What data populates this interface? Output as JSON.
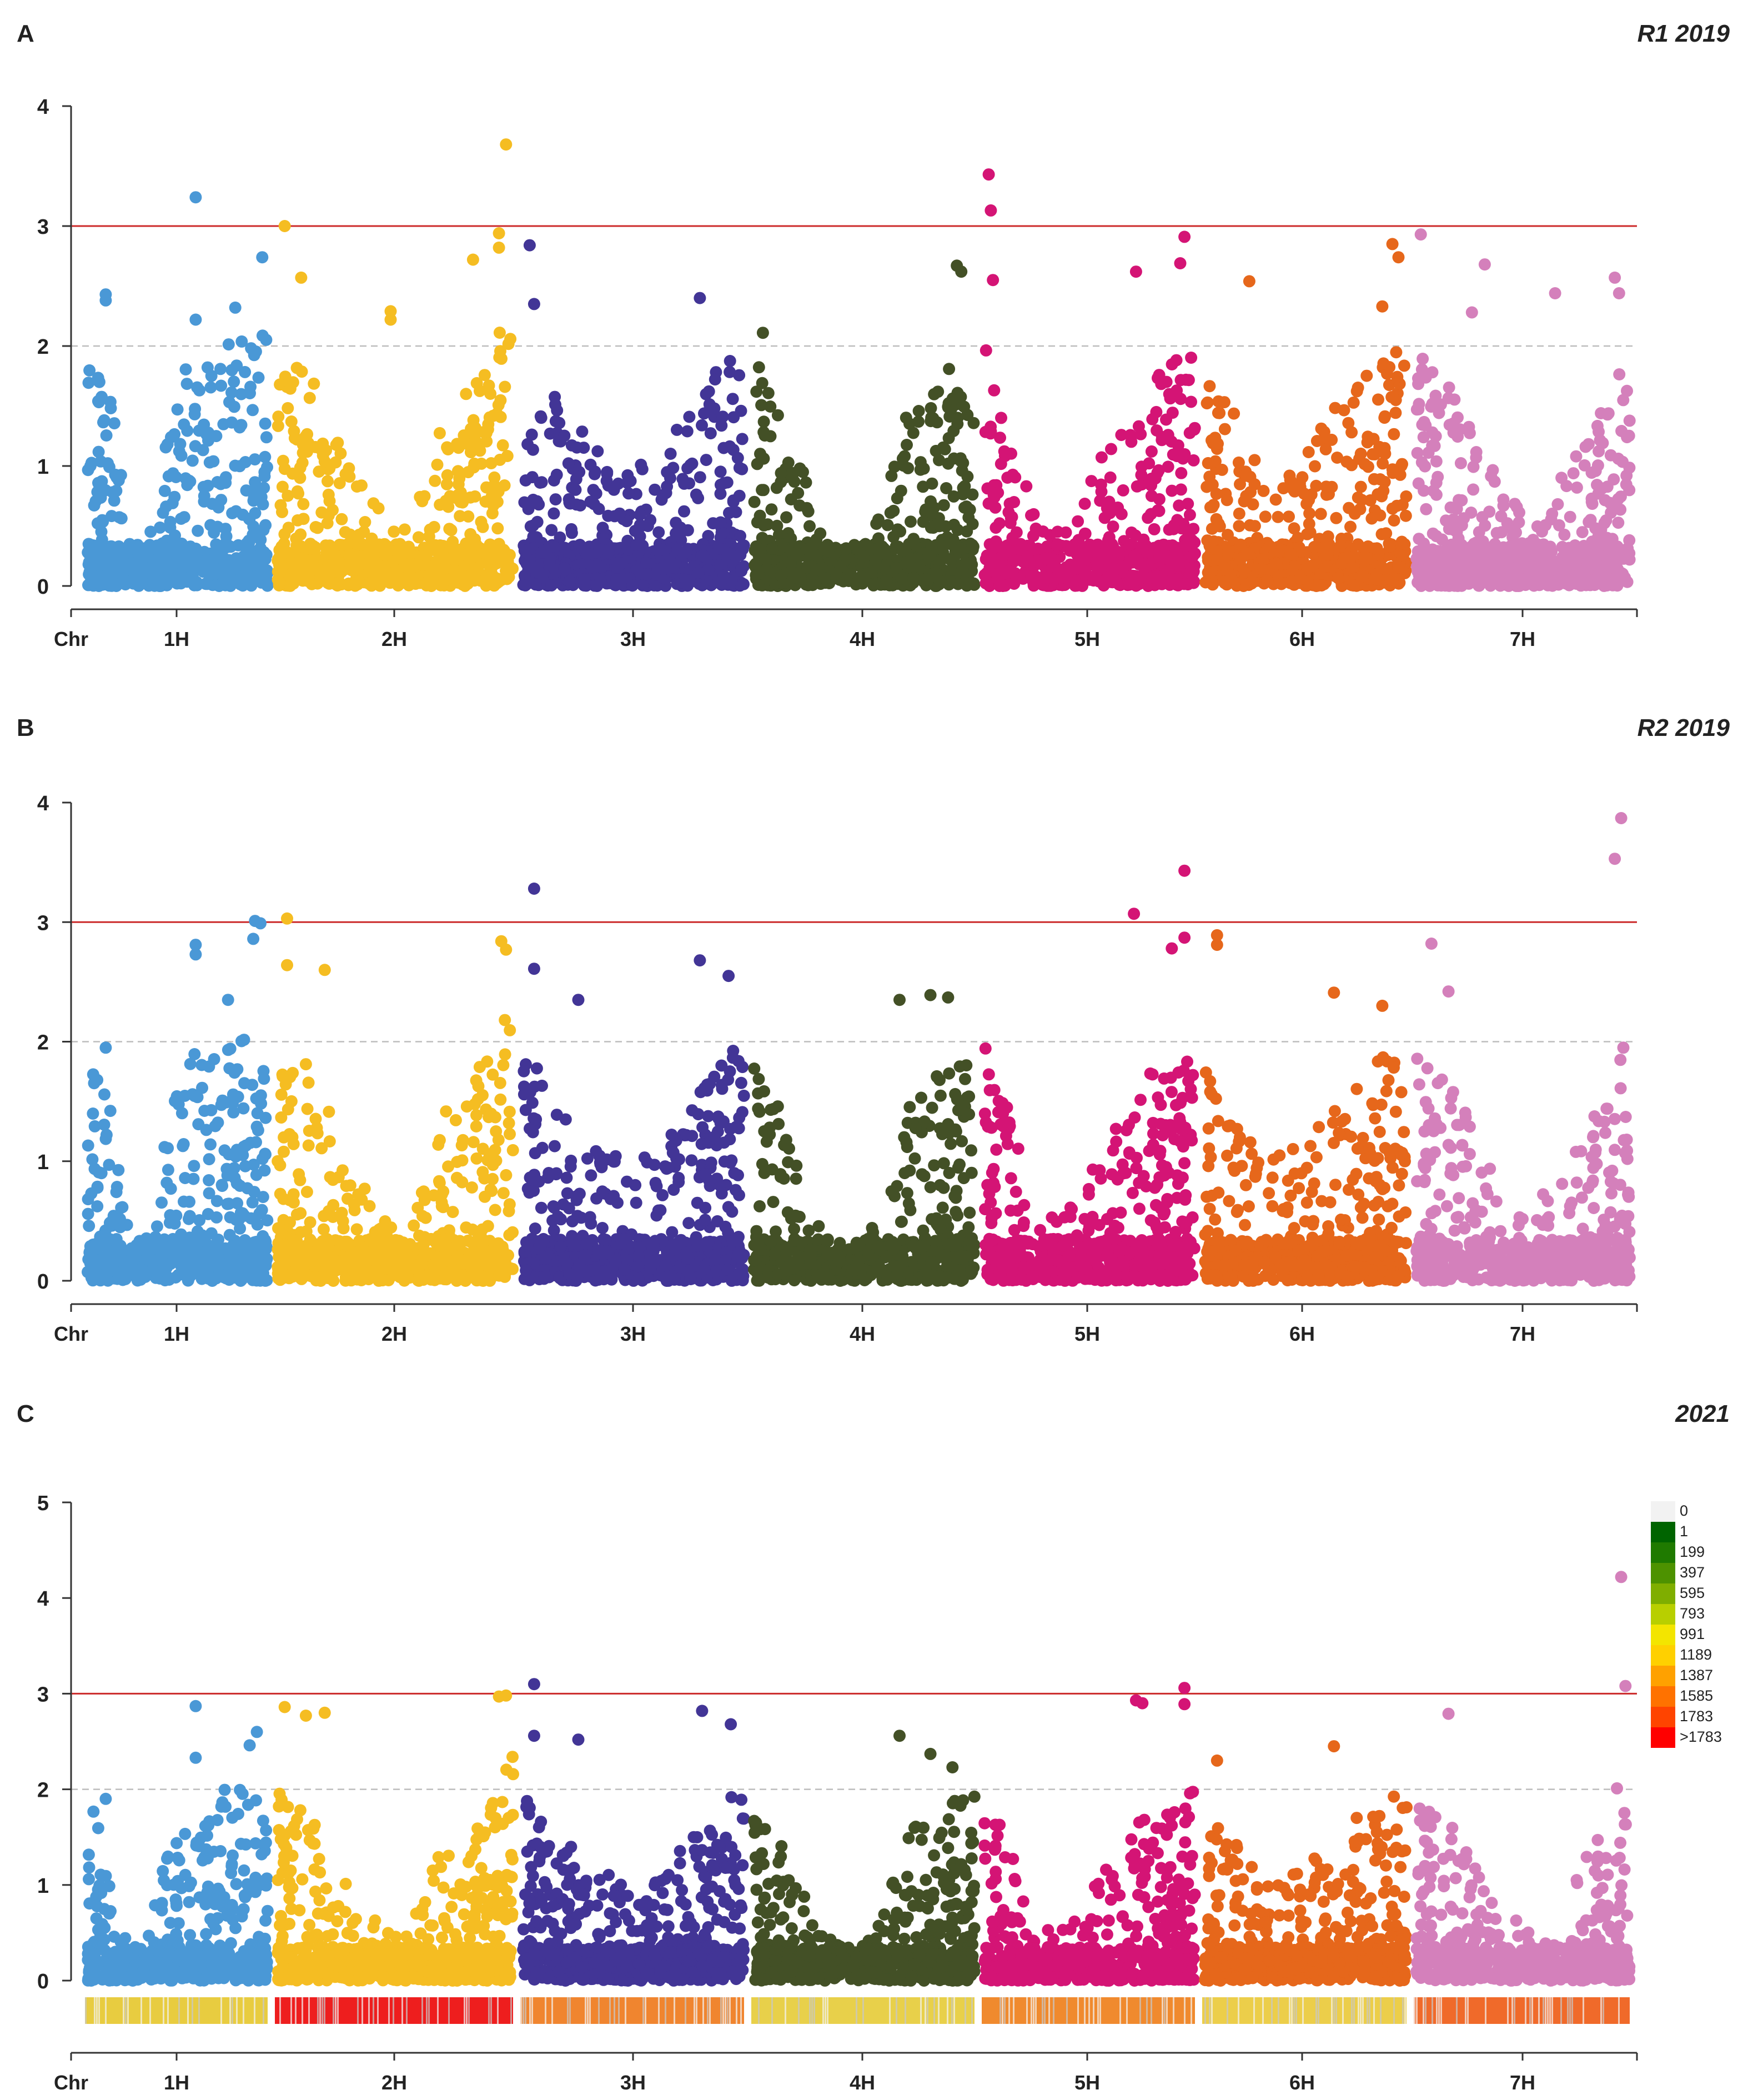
{
  "colors": {
    "1H": "#4a98d6",
    "2H": "#f5bd22",
    "3H": "#423596",
    "4H": "#435026",
    "5H": "#d41475",
    "6H": "#e6671b",
    "7H": "#d480bb",
    "threshold_line": "#cc2a2a",
    "suggestive_line": "#bdbdbd",
    "axis": "#333333"
  },
  "chart_data": [
    {
      "type": "scatter",
      "subtype": "manhattan",
      "label": "A",
      "title": "R1 2019",
      "xlabel": "Chr",
      "ylabel": "",
      "categories": [
        "1H",
        "2H",
        "3H",
        "4H",
        "5H",
        "6H",
        "7H"
      ],
      "yticks": [
        "0",
        "1",
        "2",
        "3",
        "4"
      ],
      "ylim": [
        0,
        4
      ],
      "threshold": 3,
      "suggestive": 2,
      "peaks": [
        {
          "chr": "1H",
          "pos": 0.1,
          "value": 2.43
        },
        {
          "chr": "1H",
          "pos": 0.1,
          "value": 2.38
        },
        {
          "chr": "1H",
          "pos": 0.6,
          "value": 3.24
        },
        {
          "chr": "1H",
          "pos": 0.6,
          "value": 2.22
        },
        {
          "chr": "1H",
          "pos": 0.82,
          "value": 2.32
        },
        {
          "chr": "1H",
          "pos": 0.97,
          "value": 2.74
        },
        {
          "chr": "2H",
          "pos": 0.03,
          "value": 3.0
        },
        {
          "chr": "2H",
          "pos": 0.1,
          "value": 2.57
        },
        {
          "chr": "2H",
          "pos": 0.48,
          "value": 2.29
        },
        {
          "chr": "2H",
          "pos": 0.48,
          "value": 2.22
        },
        {
          "chr": "2H",
          "pos": 0.83,
          "value": 2.72
        },
        {
          "chr": "2H",
          "pos": 0.94,
          "value": 2.94
        },
        {
          "chr": "2H",
          "pos": 0.94,
          "value": 2.82
        },
        {
          "chr": "2H",
          "pos": 0.97,
          "value": 3.68
        },
        {
          "chr": "3H",
          "pos": 0.03,
          "value": 2.84
        },
        {
          "chr": "3H",
          "pos": 0.05,
          "value": 2.35
        },
        {
          "chr": "3H",
          "pos": 0.8,
          "value": 2.4
        },
        {
          "chr": "4H",
          "pos": 0.04,
          "value": 2.11
        },
        {
          "chr": "4H",
          "pos": 0.92,
          "value": 2.67
        },
        {
          "chr": "4H",
          "pos": 0.94,
          "value": 2.62
        },
        {
          "chr": "5H",
          "pos": 0.02,
          "value": 3.43
        },
        {
          "chr": "5H",
          "pos": 0.03,
          "value": 3.13
        },
        {
          "chr": "5H",
          "pos": 0.04,
          "value": 2.55
        },
        {
          "chr": "5H",
          "pos": 0.72,
          "value": 2.62
        },
        {
          "chr": "5H",
          "pos": 0.95,
          "value": 2.91
        },
        {
          "chr": "5H",
          "pos": 0.93,
          "value": 2.69
        },
        {
          "chr": "6H",
          "pos": 0.22,
          "value": 2.54
        },
        {
          "chr": "6H",
          "pos": 0.88,
          "value": 2.33
        },
        {
          "chr": "6H",
          "pos": 0.93,
          "value": 2.85
        },
        {
          "chr": "6H",
          "pos": 0.96,
          "value": 2.74
        },
        {
          "chr": "7H",
          "pos": 0.02,
          "value": 2.93
        },
        {
          "chr": "7H",
          "pos": 0.32,
          "value": 2.68
        },
        {
          "chr": "7H",
          "pos": 0.26,
          "value": 2.28
        },
        {
          "chr": "7H",
          "pos": 0.65,
          "value": 2.44
        },
        {
          "chr": "7H",
          "pos": 0.93,
          "value": 2.57
        },
        {
          "chr": "7H",
          "pos": 0.95,
          "value": 2.44
        }
      ]
    },
    {
      "type": "scatter",
      "subtype": "manhattan",
      "label": "B",
      "title": "R2 2019",
      "xlabel": "Chr",
      "ylabel": "",
      "categories": [
        "1H",
        "2H",
        "3H",
        "4H",
        "5H",
        "6H",
        "7H"
      ],
      "yticks": [
        "0",
        "1",
        "2",
        "3",
        "4"
      ],
      "ylim": [
        0,
        4
      ],
      "threshold": 3,
      "suggestive": 2,
      "peaks": [
        {
          "chr": "1H",
          "pos": 0.1,
          "value": 1.95
        },
        {
          "chr": "1H",
          "pos": 0.6,
          "value": 2.81
        },
        {
          "chr": "1H",
          "pos": 0.6,
          "value": 2.73
        },
        {
          "chr": "1H",
          "pos": 0.78,
          "value": 2.35
        },
        {
          "chr": "1H",
          "pos": 0.93,
          "value": 3.01
        },
        {
          "chr": "1H",
          "pos": 0.96,
          "value": 2.99
        },
        {
          "chr": "1H",
          "pos": 0.92,
          "value": 2.86
        },
        {
          "chr": "2H",
          "pos": 0.04,
          "value": 3.03
        },
        {
          "chr": "2H",
          "pos": 0.04,
          "value": 2.64
        },
        {
          "chr": "2H",
          "pos": 0.2,
          "value": 2.6
        },
        {
          "chr": "2H",
          "pos": 0.95,
          "value": 2.84
        },
        {
          "chr": "2H",
          "pos": 0.97,
          "value": 2.77
        },
        {
          "chr": "3H",
          "pos": 0.05,
          "value": 3.28
        },
        {
          "chr": "3H",
          "pos": 0.05,
          "value": 2.61
        },
        {
          "chr": "3H",
          "pos": 0.25,
          "value": 2.35
        },
        {
          "chr": "3H",
          "pos": 0.8,
          "value": 2.68
        },
        {
          "chr": "3H",
          "pos": 0.93,
          "value": 2.55
        },
        {
          "chr": "4H",
          "pos": 0.66,
          "value": 2.35
        },
        {
          "chr": "4H",
          "pos": 0.8,
          "value": 2.39
        },
        {
          "chr": "4H",
          "pos": 0.88,
          "value": 2.37
        },
        {
          "chr": "5H",
          "pos": 0.71,
          "value": 3.07
        },
        {
          "chr": "5H",
          "pos": 0.89,
          "value": 2.78
        },
        {
          "chr": "5H",
          "pos": 0.95,
          "value": 3.43
        },
        {
          "chr": "5H",
          "pos": 0.95,
          "value": 2.87
        },
        {
          "chr": "6H",
          "pos": 0.06,
          "value": 2.89
        },
        {
          "chr": "6H",
          "pos": 0.06,
          "value": 2.81
        },
        {
          "chr": "6H",
          "pos": 0.64,
          "value": 2.41
        },
        {
          "chr": "6H",
          "pos": 0.88,
          "value": 2.3
        },
        {
          "chr": "7H",
          "pos": 0.07,
          "value": 2.82
        },
        {
          "chr": "7H",
          "pos": 0.15,
          "value": 2.42
        },
        {
          "chr": "7H",
          "pos": 0.96,
          "value": 3.87
        },
        {
          "chr": "7H",
          "pos": 0.93,
          "value": 3.53
        },
        {
          "chr": "7H",
          "pos": 0.97,
          "value": 1.95
        }
      ]
    },
    {
      "type": "scatter",
      "subtype": "manhattan",
      "label": "C",
      "title": "2021",
      "xlabel": "Chr",
      "ylabel": "",
      "categories": [
        "1H",
        "2H",
        "3H",
        "4H",
        "5H",
        "6H",
        "7H"
      ],
      "yticks": [
        "0",
        "1",
        "2",
        "3",
        "4",
        "5"
      ],
      "ylim": [
        0,
        5
      ],
      "threshold": 3,
      "suggestive": 2,
      "peaks": [
        {
          "chr": "1H",
          "pos": 0.1,
          "value": 1.9
        },
        {
          "chr": "1H",
          "pos": 0.6,
          "value": 2.87
        },
        {
          "chr": "1H",
          "pos": 0.6,
          "value": 2.33
        },
        {
          "chr": "1H",
          "pos": 0.94,
          "value": 2.6
        },
        {
          "chr": "1H",
          "pos": 0.9,
          "value": 2.46
        },
        {
          "chr": "2H",
          "pos": 0.03,
          "value": 2.86
        },
        {
          "chr": "2H",
          "pos": 0.12,
          "value": 2.77
        },
        {
          "chr": "2H",
          "pos": 0.2,
          "value": 2.8
        },
        {
          "chr": "2H",
          "pos": 0.94,
          "value": 2.97
        },
        {
          "chr": "2H",
          "pos": 0.97,
          "value": 2.98
        },
        {
          "chr": "3H",
          "pos": 0.05,
          "value": 3.1
        },
        {
          "chr": "3H",
          "pos": 0.05,
          "value": 2.56
        },
        {
          "chr": "3H",
          "pos": 0.25,
          "value": 2.52
        },
        {
          "chr": "3H",
          "pos": 0.81,
          "value": 2.82
        },
        {
          "chr": "3H",
          "pos": 0.94,
          "value": 2.68
        },
        {
          "chr": "4H",
          "pos": 0.66,
          "value": 2.56
        },
        {
          "chr": "4H",
          "pos": 0.8,
          "value": 2.37
        },
        {
          "chr": "4H",
          "pos": 0.9,
          "value": 2.23
        },
        {
          "chr": "5H",
          "pos": 0.72,
          "value": 2.93
        },
        {
          "chr": "5H",
          "pos": 0.75,
          "value": 2.9
        },
        {
          "chr": "5H",
          "pos": 0.95,
          "value": 3.06
        },
        {
          "chr": "5H",
          "pos": 0.95,
          "value": 2.89
        },
        {
          "chr": "6H",
          "pos": 0.06,
          "value": 2.3
        },
        {
          "chr": "6H",
          "pos": 0.64,
          "value": 2.45
        },
        {
          "chr": "7H",
          "pos": 0.15,
          "value": 2.79
        },
        {
          "chr": "7H",
          "pos": 0.96,
          "value": 4.22
        },
        {
          "chr": "7H",
          "pos": 0.98,
          "value": 3.08
        },
        {
          "chr": "7H",
          "pos": 0.94,
          "value": 2.01
        }
      ],
      "density_legend": {
        "labels": [
          "0",
          "1",
          "199",
          "397",
          "595",
          "793",
          "991",
          "1189",
          "1387",
          "1585",
          "1783",
          ">1783"
        ],
        "colors": [
          "#f2f2f2",
          "#006400",
          "#1f7a00",
          "#4d9200",
          "#7fae00",
          "#b8cf00",
          "#f3e500",
          "#ffd000",
          "#ffa100",
          "#ff7200",
          "#ff4400",
          "#ff0000"
        ]
      },
      "density_bar_colors": [
        "#e8cc40",
        "#ee1e1e",
        "#f0852f",
        "#e8d04a",
        "#f08a2e",
        "#ecce4a",
        "#f06a2a"
      ]
    }
  ]
}
